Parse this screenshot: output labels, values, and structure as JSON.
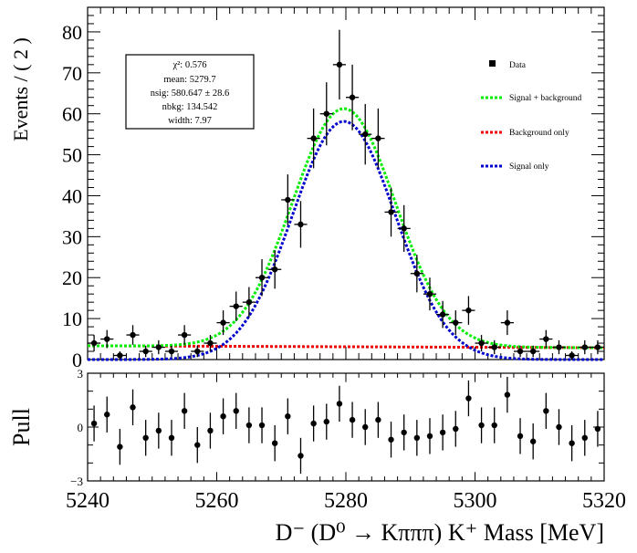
{
  "chart_data": [
    {
      "type": "scatter",
      "title": "",
      "xlabel": "D⁻ (D⁰ → Kπππ) K⁺ Mass [MeV]",
      "ylabel": "Events / ( 2 )",
      "xlim": [
        5240,
        5320
      ],
      "ylim": [
        0,
        86
      ],
      "x_ticks": [
        "5240",
        "5260",
        "5280",
        "5300",
        "5320"
      ],
      "y_ticks": [
        "0",
        "10",
        "20",
        "30",
        "40",
        "50",
        "60",
        "70",
        "80"
      ],
      "bin_width": 2,
      "legend_position": "top-right",
      "legend": [
        {
          "label": "Data",
          "marker": "square",
          "color": "#000000"
        },
        {
          "label": "Signal + background",
          "color": "#00ee00"
        },
        {
          "label": "Background only",
          "color": "#ee0000"
        },
        {
          "label": "Signal only",
          "color": "#0000cc"
        }
      ],
      "stats_box": [
        "χ²: 0.576",
        "mean: 5279.7",
        "nsig: 580.647 ± 28.6",
        "nbkg: 134.542",
        "width: 7.97"
      ],
      "fit": {
        "mean": 5279.7,
        "width": 7.97,
        "nsig": 580.647,
        "nbkg": 134.542,
        "background_level": 3.36
      },
      "series": [
        {
          "name": "Data",
          "x": [
            5241,
            5243,
            5245,
            5247,
            5249,
            5251,
            5253,
            5255,
            5257,
            5259,
            5261,
            5263,
            5265,
            5267,
            5269,
            5271,
            5273,
            5275,
            5277,
            5279,
            5281,
            5283,
            5285,
            5287,
            5289,
            5291,
            5293,
            5295,
            5297,
            5299,
            5301,
            5303,
            5305,
            5307,
            5309,
            5311,
            5313,
            5315,
            5317,
            5319
          ],
          "y": [
            4,
            5,
            1,
            6,
            2,
            3,
            2,
            6,
            2,
            4,
            9,
            13,
            14,
            20,
            22,
            39,
            33,
            54,
            60,
            72,
            64,
            55,
            54,
            36,
            32,
            21,
            16,
            11,
            9,
            12,
            4,
            3,
            9,
            2,
            2,
            5,
            3,
            1,
            3,
            3
          ],
          "yerr": [
            2,
            2.2,
            1,
            2.4,
            1.4,
            1.7,
            1.4,
            2.4,
            1.4,
            2,
            3,
            3.6,
            3.7,
            4.5,
            4.7,
            6.2,
            5.7,
            7.3,
            7.7,
            8.5,
            8,
            7.4,
            7.3,
            6,
            5.7,
            4.6,
            4,
            3.3,
            3,
            3.5,
            2,
            1.7,
            3,
            1.4,
            1.4,
            2.2,
            1.7,
            1,
            1.7,
            1.7
          ]
        }
      ]
    },
    {
      "type": "scatter",
      "title": "",
      "xlabel": "",
      "ylabel": "Pull",
      "xlim": [
        5240,
        5320
      ],
      "ylim": [
        -3,
        3
      ],
      "y_ticks": [
        "3",
        "0",
        "−3"
      ],
      "series": [
        {
          "name": "Pull",
          "x": [
            5241,
            5243,
            5245,
            5247,
            5249,
            5251,
            5253,
            5255,
            5257,
            5259,
            5261,
            5263,
            5265,
            5267,
            5269,
            5271,
            5273,
            5275,
            5277,
            5279,
            5281,
            5283,
            5285,
            5287,
            5289,
            5291,
            5293,
            5295,
            5297,
            5299,
            5301,
            5303,
            5305,
            5307,
            5309,
            5311,
            5313,
            5315,
            5317,
            5319
          ],
          "y": [
            0.2,
            0.7,
            -1.1,
            1.1,
            -0.6,
            -0.2,
            -0.6,
            0.9,
            -1.0,
            -0.2,
            0.6,
            0.9,
            0.1,
            0.1,
            -0.9,
            0.6,
            -1.6,
            0.2,
            0.3,
            1.3,
            0.4,
            0.0,
            0.4,
            -0.7,
            -0.3,
            -0.6,
            -0.5,
            -0.3,
            -0.1,
            1.6,
            0.1,
            0.1,
            1.8,
            -0.5,
            -0.8,
            0.9,
            0.0,
            -0.9,
            -0.6,
            -0.1
          ],
          "yerr": [
            1,
            1,
            1,
            1,
            1,
            1,
            1,
            1,
            1,
            1,
            1,
            1,
            1,
            1,
            1,
            1,
            1,
            1,
            1,
            1,
            1,
            1,
            1,
            1,
            1,
            1,
            1,
            1,
            1,
            1,
            1,
            1,
            1,
            1,
            1,
            1,
            1,
            1,
            1,
            1
          ]
        }
      ]
    }
  ]
}
